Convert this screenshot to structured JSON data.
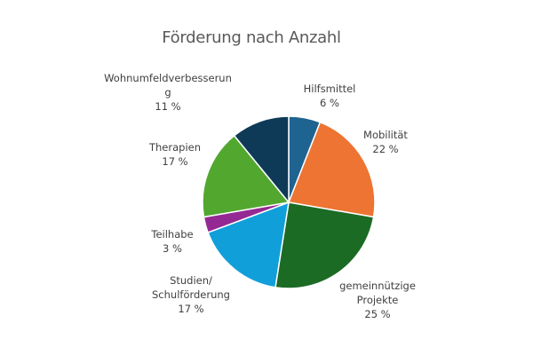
{
  "chart_data": {
    "type": "pie",
    "title": "Förderung nach Anzahl",
    "slices": [
      {
        "label_lines": [
          "Hilfsmittel"
        ],
        "value": 6,
        "value_label": "6 %",
        "color": "#1f6391"
      },
      {
        "label_lines": [
          "Mobilität"
        ],
        "value": 22,
        "value_label": "22 %",
        "color": "#ed7432"
      },
      {
        "label_lines": [
          "gemeinnützige",
          "Projekte"
        ],
        "value": 25,
        "value_label": "25 %",
        "color": "#1b6b25"
      },
      {
        "label_lines": [
          "Studien/",
          "Schulförderung"
        ],
        "value": 17,
        "value_label": "17 %",
        "color": "#119fd9"
      },
      {
        "label_lines": [
          "Teilhabe"
        ],
        "value": 3,
        "value_label": "3 %",
        "color": "#952993"
      },
      {
        "label_lines": [
          "Therapien"
        ],
        "value": 17,
        "value_label": "17 %",
        "color": "#52a72f"
      },
      {
        "label_lines": [
          "Wohnumfeldverbesserun",
          "g"
        ],
        "value": 11,
        "value_label": "11 %",
        "color": "#0f3a57"
      }
    ]
  }
}
